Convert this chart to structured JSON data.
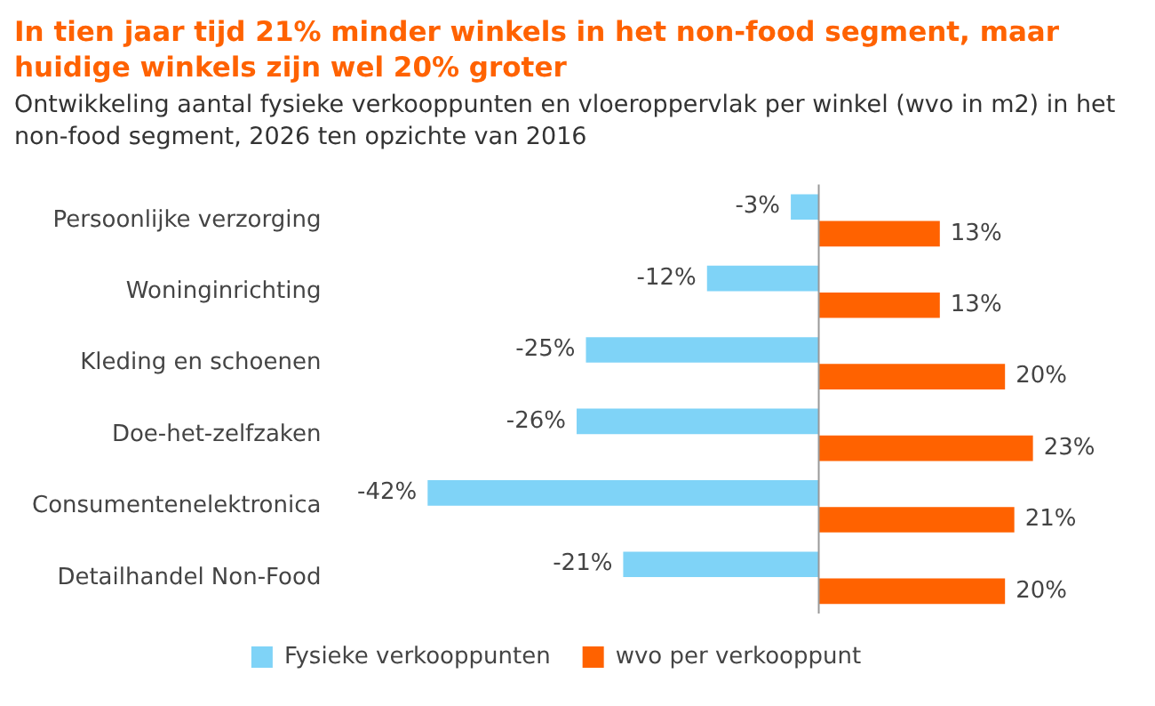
{
  "chart_data": {
    "type": "bar",
    "orientation": "horizontal",
    "title": "In tien jaar tijd 21% minder winkels in het non-food segment, maar huidige winkels zijn wel 20% groter",
    "subtitle": "Ontwikkeling aantal fysieke verkooppunten en vloeroppervlak per winkel (wvo in m2) in het non-food segment, 2026 ten opzichte van 2016",
    "categories": [
      "Persoonlijke verzorging",
      "Woninginrichting",
      "Kleding en schoenen",
      "Doe-het-zelfzaken",
      "Consumentenelektronica",
      "Detailhandel Non-Food"
    ],
    "series": [
      {
        "name": "Fysieke verkooppunten",
        "color": "#7fd3f7",
        "values": [
          -3,
          -12,
          -25,
          -26,
          -42,
          -21
        ],
        "value_labels": [
          "-3%",
          "-12%",
          "-25%",
          "-26%",
          "-42%",
          "-21%"
        ]
      },
      {
        "name": "wvo per verkooppunt",
        "color": "#ff6200",
        "values": [
          13,
          13,
          20,
          23,
          21,
          20
        ],
        "value_labels": [
          "13%",
          "13%",
          "20%",
          "23%",
          "21%",
          "20%"
        ]
      }
    ],
    "legend": "bottom",
    "grid": false
  }
}
